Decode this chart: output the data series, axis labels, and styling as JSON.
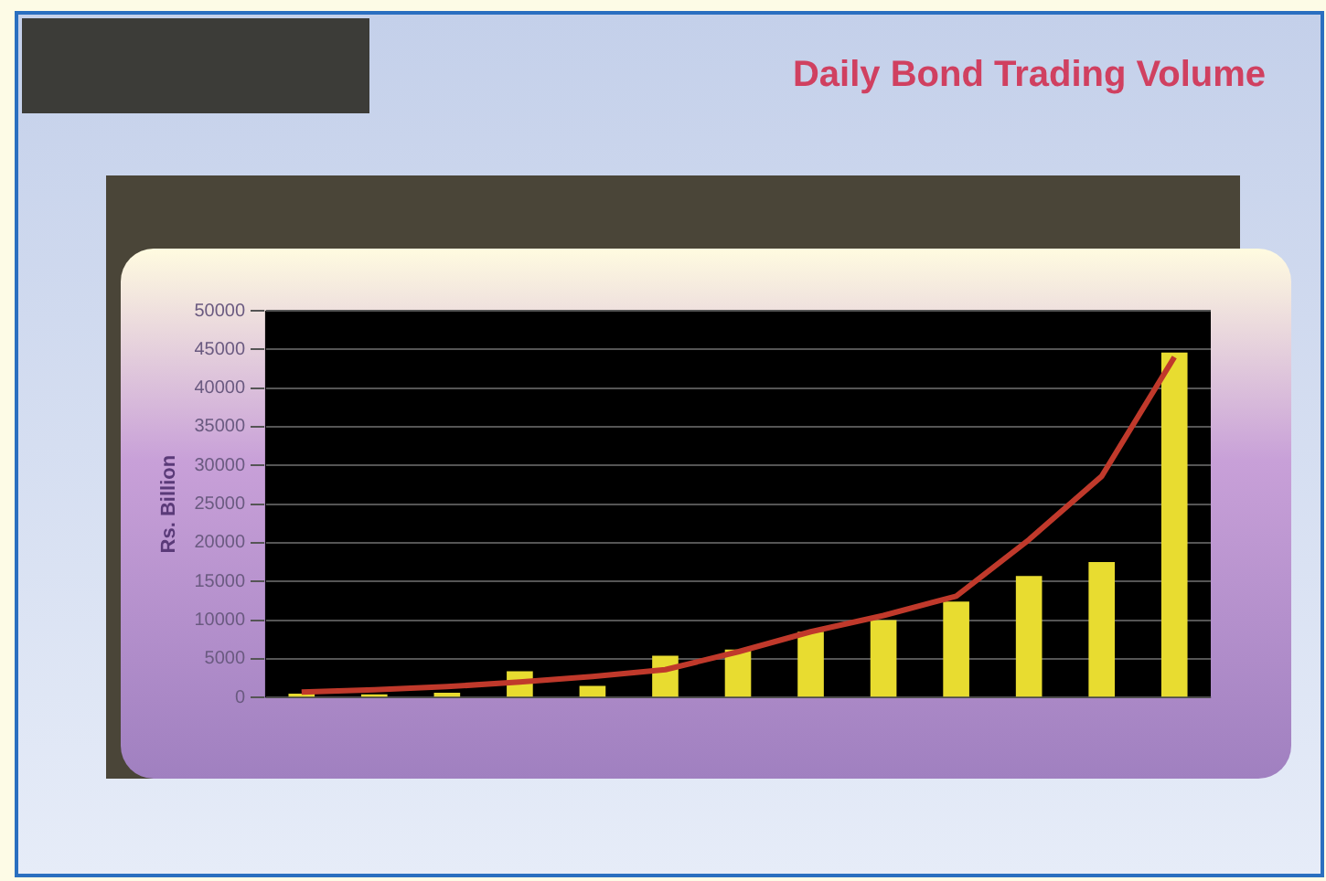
{
  "chart_data": {
    "type": "bar",
    "title": "Daily Bond Trading Volume",
    "ylabel": "Rs. Billion",
    "categories": [
      null,
      null,
      null,
      null,
      null,
      null,
      null,
      null,
      null,
      null,
      null,
      null,
      null
    ],
    "series": [
      {
        "color": "#e8dc30",
        "values": [
          500,
          400,
          600,
          3400,
          1500,
          5400,
          6200,
          8500,
          10000,
          12400,
          15700,
          17500,
          44600
        ]
      },
      {
        "type": "line",
        "color": "#c0392b",
        "values": [
          700,
          1000,
          1400,
          2000,
          2700,
          3600,
          5900,
          8500,
          10600,
          13100,
          20400,
          28600,
          44000
        ]
      }
    ],
    "ylim": [
      0,
      50000
    ],
    "yticks": [
      0,
      5000,
      10000,
      15000,
      20000,
      25000,
      30000,
      35000,
      40000,
      45000,
      50000
    ],
    "grid": "y",
    "legend": false,
    "marker": "none"
  }
}
